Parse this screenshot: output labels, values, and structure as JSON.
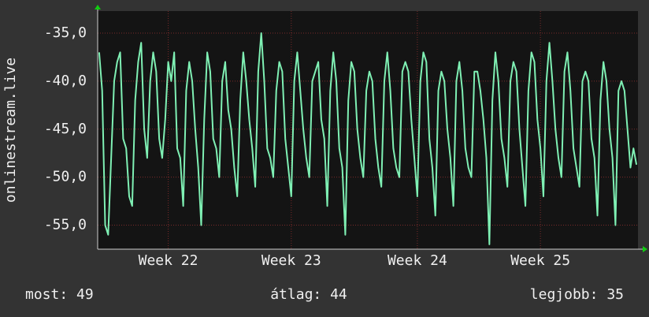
{
  "chart_data": {
    "type": "line",
    "ylabel": "onlinestream.live",
    "color": "#7ff0b4",
    "grid": true,
    "ylim": [
      -57.5,
      -32.7
    ],
    "yticks": [
      {
        "value": -35,
        "label": "-35,0"
      },
      {
        "value": -40,
        "label": "-40,0"
      },
      {
        "value": -45,
        "label": "-45,0"
      },
      {
        "value": -50,
        "label": "-50,0"
      },
      {
        "value": -55,
        "label": "-55,0"
      }
    ],
    "categories": [
      null,
      null,
      null,
      null,
      null,
      null,
      null,
      null,
      null,
      null,
      null,
      null,
      null,
      null,
      null,
      null,
      null,
      null,
      null,
      null,
      null,
      null,
      null,
      "Week 22",
      null,
      null,
      null,
      null,
      null,
      null,
      null,
      null,
      null,
      null,
      null,
      null,
      null,
      null,
      null,
      null,
      null,
      null,
      null,
      null,
      null,
      null,
      null,
      null,
      null,
      null,
      null,
      null,
      null,
      null,
      null,
      null,
      null,
      null,
      null,
      null,
      null,
      null,
      null,
      null,
      "Week 23",
      null,
      null,
      null,
      null,
      null,
      null,
      null,
      null,
      null,
      null,
      null,
      null,
      null,
      null,
      null,
      null,
      null,
      null,
      null,
      null,
      null,
      null,
      null,
      null,
      null,
      null,
      null,
      null,
      null,
      null,
      null,
      null,
      null,
      null,
      null,
      null,
      null,
      null,
      null,
      null,
      null,
      "Week 24",
      null,
      null,
      null,
      null,
      null,
      null,
      null,
      null,
      null,
      null,
      null,
      null,
      null,
      null,
      null,
      null,
      null,
      null,
      null,
      null,
      null,
      null,
      null,
      null,
      null,
      null,
      null,
      null,
      null,
      null,
      null,
      null,
      null,
      null,
      null,
      null,
      null,
      null,
      null,
      null,
      "Week 25",
      null,
      null,
      null,
      null,
      null,
      null,
      null,
      null,
      null,
      null,
      null,
      null,
      null,
      null,
      null,
      null,
      null,
      null,
      null,
      null,
      null,
      null,
      null,
      null,
      null,
      null,
      null,
      null,
      null,
      null,
      null,
      null
    ],
    "values": [
      -37,
      -41,
      -55,
      -56,
      -48,
      -40,
      -38,
      -37,
      -46,
      -47,
      -52,
      -53,
      -42,
      -38,
      -36,
      -45,
      -48,
      -40,
      -37,
      -39,
      -46,
      -48,
      -44,
      -38,
      -40,
      -37,
      -47,
      -48,
      -53,
      -41,
      -38,
      -40,
      -45,
      -49,
      -55,
      -44,
      -37,
      -39,
      -46,
      -47,
      -50,
      -40,
      -38,
      -43,
      -45,
      -49,
      -52,
      -42,
      -37,
      -40,
      -44,
      -47,
      -51,
      -39,
      -35,
      -40,
      -47,
      -48,
      -50,
      -41,
      -38,
      -39,
      -46,
      -49,
      -52,
      -40,
      -37,
      -41,
      -45,
      -48,
      -50,
      -40,
      -39,
      -38,
      -44,
      -46,
      -53,
      -41,
      -37,
      -40,
      -47,
      -49,
      -56,
      -42,
      -38,
      -39,
      -45,
      -48,
      -50,
      -41,
      -39,
      -40,
      -46,
      -49,
      -51,
      -40,
      -37,
      -41,
      -47,
      -49,
      -50,
      -39,
      -38,
      -39,
      -44,
      -48,
      -52,
      -40,
      -37,
      -38,
      -46,
      -49,
      -54,
      -41,
      -39,
      -40,
      -45,
      -48,
      -53,
      -40,
      -38,
      -41,
      -47,
      -49,
      -50,
      -39,
      -39,
      -41,
      -44,
      -48,
      -57,
      -42,
      -37,
      -40,
      -46,
      -48,
      -51,
      -40,
      -38,
      -39,
      -45,
      -49,
      -53,
      -41,
      -37,
      -38,
      -44,
      -47,
      -52,
      -40,
      -36,
      -40,
      -45,
      -48,
      -50,
      -39,
      -37,
      -41,
      -47,
      -49,
      -51,
      -40,
      -39,
      -40,
      -46,
      -48,
      -54,
      -42,
      -38,
      -40,
      -45,
      -48,
      -55,
      -41,
      -40,
      -41,
      -45,
      -49,
      -47,
      -48.7
    ],
    "stats": [
      "most: 49",
      "átlag: 44",
      "legjobb: 35"
    ]
  }
}
